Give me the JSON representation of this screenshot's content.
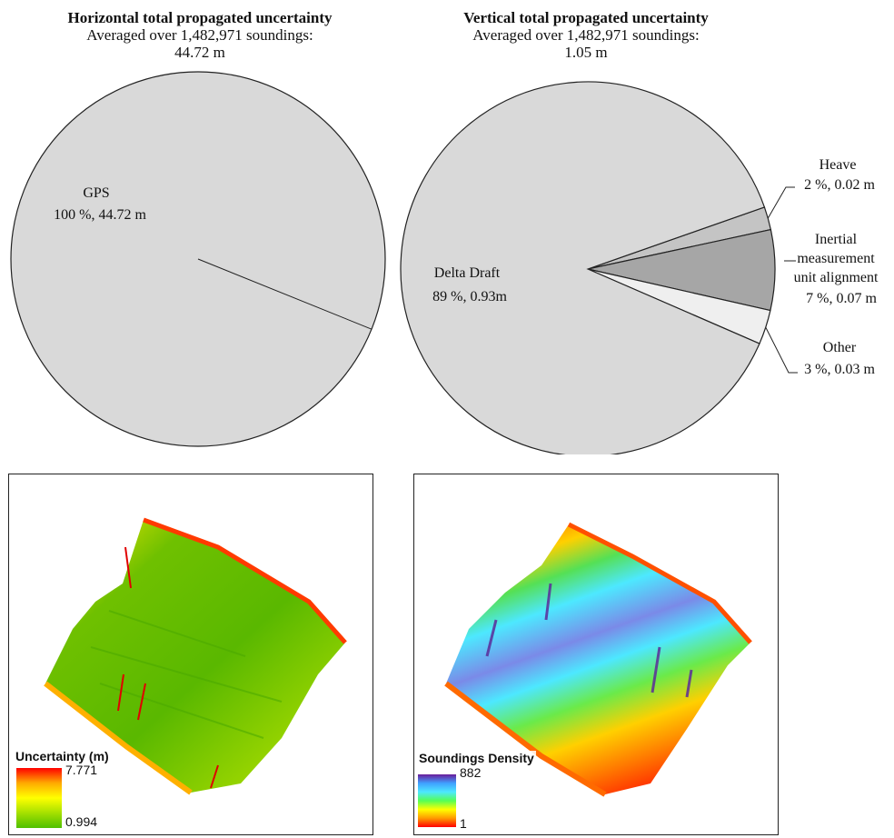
{
  "chart_data": [
    {
      "type": "pie",
      "title": "Horizontal total propagated uncertainty",
      "subtitle_line1": "Averaged over 1,482,971  soundings:",
      "subtitle_line2": "44.72  m",
      "slices": [
        {
          "name": "GPS",
          "percent": 100,
          "value_text": "100 %, 44.72 m",
          "color": "#d9d9d9"
        }
      ]
    },
    {
      "type": "pie",
      "title": "Vertical total propagated uncertainty",
      "subtitle_line1": "Averaged over 1,482,971  soundings:",
      "subtitle_line2": "1.05  m",
      "slices": [
        {
          "name": "Delta Draft",
          "percent": 89,
          "value_text": "89 %, 0.93m",
          "color": "#d9d9d9"
        },
        {
          "name": "Heave",
          "percent": 2,
          "value_text": "2 %, 0.02  m",
          "color": "#c4c4c4"
        },
        {
          "name": "Inertial measurement unit alignment",
          "name_lines": [
            "Inertial",
            "measurement",
            "unit  alignment"
          ],
          "percent": 7,
          "value_text": "7 %, 0.07  m",
          "color": "#a6a6a6"
        },
        {
          "name": "Other",
          "percent": 3,
          "value_text": "3 %, 0.03  m",
          "color": "#efefef"
        }
      ]
    }
  ],
  "maps": {
    "uncertainty": {
      "legend_title": "Uncertainty (m)",
      "max_label": "7.771",
      "min_label": "0.994",
      "gradient_colors": [
        "#ff0000",
        "#ffaa00",
        "#ffff00",
        "#a5e000",
        "#4fc000"
      ]
    },
    "density": {
      "legend_title": "Soundings Density",
      "max_label": "882",
      "min_label": "1",
      "gradient_colors": [
        "#6a1b9a",
        "#3fa0ff",
        "#4de8ff",
        "#55ff55",
        "#ffff00",
        "#ff9900",
        "#ff0000"
      ]
    }
  }
}
